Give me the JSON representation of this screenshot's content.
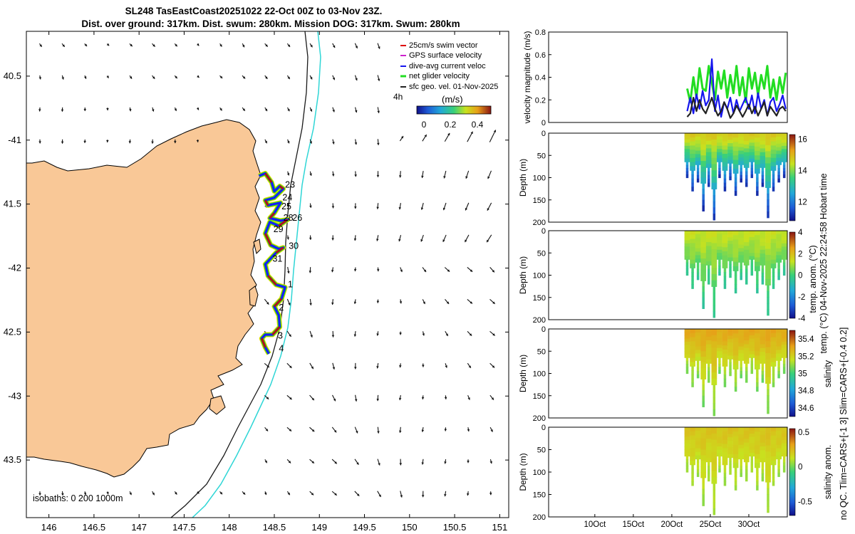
{
  "header": {
    "line1": "SL248 TasEastCoast20251022 22-Oct 00Z to 03-Nov 23Z.",
    "line2": "Dist. over ground: 317km. Dist. swum: 280km. Mission DOG: 317km. Swum: 280km"
  },
  "side_text": {
    "timestamp": "temp. (°C) 04-Nov-2025 22:24:58 Hobart time",
    "qc_note": "no QC. Tlim=CARS+[-1 3] Slim=CARS+[-0.4 0.2]"
  },
  "colors": {
    "land": "#f9c897",
    "track": "#1a1aff",
    "isobath_shallow": "#1a1a1a",
    "isobath_deep": "#2fd6d6",
    "vel_green": "#22dd22",
    "vel_blue": "#1515ee",
    "vel_dark": "#222222"
  },
  "chart_data": [
    {
      "type": "map",
      "name": "glider-track-map",
      "xlim": [
        145.75,
        151.1
      ],
      "ylim": [
        -43.95,
        -40.15
      ],
      "x_ticks": [
        146,
        146.5,
        147,
        147.5,
        148,
        148.5,
        149,
        149.5,
        150,
        150.5,
        151
      ],
      "x_tick_labels": [
        "146",
        "146.5",
        "147",
        "147.5",
        "148",
        "148.5",
        "149",
        "149.5",
        "150",
        "150.5",
        "151"
      ],
      "y_ticks": [
        -40.5,
        -41,
        -41.5,
        -42,
        -42.5,
        -43,
        -43.5
      ],
      "y_tick_labels": [
        "40.5",
        "-41",
        "41.5",
        "-42",
        "42.5",
        "-43",
        "43.5"
      ],
      "legend": {
        "placement": "top-right",
        "items": [
          {
            "label": "25cm/s swim vector",
            "color": "#dd0000"
          },
          {
            "label": "GPS surface velocity",
            "color": "#cc22cc"
          },
          {
            "label": "dive-avg current veloc",
            "color": "#1515ee"
          },
          {
            "label": "net glider velocity",
            "color": "#22dd22"
          },
          {
            "label": "sfc geo. vel. 01-Nov-2025",
            "color": "#222222"
          }
        ]
      },
      "colorbar": {
        "label": "(m/s)",
        "side_label": "4h",
        "ticks": [
          0,
          0.2,
          0.4
        ],
        "tick_labels": [
          "0",
          "0.2",
          "0.4"
        ],
        "range": [
          0,
          0.5
        ]
      },
      "isobaths_label": "isobaths: 0   200  1000m",
      "day_labels": [
        {
          "text": "23",
          "lon": 148.62,
          "lat": -41.37
        },
        {
          "text": "24",
          "lon": 148.59,
          "lat": -41.47
        },
        {
          "text": "25",
          "lon": 148.58,
          "lat": -41.54
        },
        {
          "text": "28",
          "lon": 148.6,
          "lat": -41.63
        },
        {
          "text": "26",
          "lon": 148.7,
          "lat": -41.63
        },
        {
          "text": "29",
          "lon": 148.49,
          "lat": -41.72
        },
        {
          "text": "30",
          "lon": 148.66,
          "lat": -41.85
        },
        {
          "text": "31",
          "lon": 148.48,
          "lat": -41.95
        },
        {
          "text": "1",
          "lon": 148.65,
          "lat": -42.15
        },
        {
          "text": "2",
          "lon": 148.55,
          "lat": -42.33
        },
        {
          "text": "3",
          "lon": 148.54,
          "lat": -42.55
        },
        {
          "text": "4",
          "lon": 148.55,
          "lat": -42.65
        }
      ],
      "track": [
        [
          148.33,
          -41.28
        ],
        [
          148.4,
          -41.26
        ],
        [
          148.47,
          -41.33
        ],
        [
          148.5,
          -41.4
        ],
        [
          148.56,
          -41.36
        ],
        [
          148.6,
          -41.38
        ],
        [
          148.5,
          -41.45
        ],
        [
          148.4,
          -41.47
        ],
        [
          148.43,
          -41.51
        ],
        [
          148.57,
          -41.49
        ],
        [
          148.5,
          -41.57
        ],
        [
          148.45,
          -41.61
        ],
        [
          148.57,
          -41.63
        ],
        [
          148.65,
          -41.62
        ],
        [
          148.55,
          -41.67
        ],
        [
          148.45,
          -41.64
        ],
        [
          148.4,
          -41.73
        ],
        [
          148.46,
          -41.82
        ],
        [
          148.55,
          -41.85
        ],
        [
          148.6,
          -41.84
        ],
        [
          148.52,
          -41.88
        ],
        [
          148.4,
          -41.97
        ],
        [
          148.43,
          -42.06
        ],
        [
          148.52,
          -42.13
        ],
        [
          148.62,
          -42.15
        ],
        [
          148.58,
          -42.24
        ],
        [
          148.5,
          -42.3
        ],
        [
          148.55,
          -42.37
        ],
        [
          148.56,
          -42.46
        ],
        [
          148.48,
          -42.52
        ],
        [
          148.4,
          -42.52
        ],
        [
          148.36,
          -42.55
        ],
        [
          148.4,
          -42.62
        ],
        [
          148.44,
          -42.67
        ]
      ],
      "note": "sfc geo. vel. arrows sampled every 0.25 deg; positions and directions follow the plotted field"
    },
    {
      "type": "line",
      "name": "velocity-magnitude",
      "ylabel": "velocity magnitude (m/s)",
      "ylim": [
        0,
        0.8
      ],
      "y_ticks": [
        0,
        0.2,
        0.4,
        0.6,
        0.8
      ],
      "y_tick_labels": [
        "0",
        "0.2",
        "0.4",
        "0.6",
        "0.8"
      ],
      "x_unit": "days since 01-Oct-2025",
      "xlim": [
        4,
        35
      ],
      "series": [
        {
          "name": "net glider velocity",
          "color": "#22dd22",
          "x": [
            22.0,
            22.4,
            22.8,
            23.2,
            23.6,
            24.0,
            24.4,
            24.8,
            25.2,
            25.6,
            26.0,
            26.4,
            26.8,
            27.2,
            27.6,
            28.0,
            28.4,
            28.8,
            29.2,
            29.6,
            30.0,
            30.4,
            30.8,
            31.2,
            31.6,
            32.0,
            32.4,
            32.8,
            33.2,
            33.6,
            34.0,
            34.4,
            34.8
          ],
          "y": [
            0.3,
            0.18,
            0.4,
            0.22,
            0.48,
            0.3,
            0.28,
            0.5,
            0.35,
            0.2,
            0.45,
            0.3,
            0.46,
            0.22,
            0.42,
            0.26,
            0.5,
            0.24,
            0.4,
            0.18,
            0.48,
            0.3,
            0.44,
            0.24,
            0.42,
            0.3,
            0.5,
            0.22,
            0.38,
            0.2,
            0.4,
            0.26,
            0.44
          ]
        },
        {
          "name": "dive-avg current veloc",
          "color": "#1515ee",
          "x": [
            22.0,
            22.4,
            22.8,
            23.2,
            23.6,
            24.0,
            24.4,
            24.8,
            25.2,
            25.6,
            26.0,
            26.4,
            26.8,
            27.2,
            27.6,
            28.0,
            28.4,
            28.8,
            29.2,
            29.6,
            30.0,
            30.4,
            30.8,
            31.2,
            31.6,
            32.0,
            32.4,
            32.8,
            33.2,
            33.6,
            34.0,
            34.4,
            34.8
          ],
          "y": [
            0.1,
            0.22,
            0.08,
            0.25,
            0.12,
            0.28,
            0.15,
            0.2,
            0.56,
            0.1,
            0.24,
            0.05,
            0.18,
            0.12,
            0.22,
            0.08,
            0.2,
            0.1,
            0.16,
            0.22,
            0.12,
            0.24,
            0.08,
            0.26,
            0.12,
            0.2,
            0.06,
            0.18,
            0.22,
            0.1,
            0.16,
            0.24,
            0.12
          ]
        },
        {
          "name": "sfc geo. vel.",
          "color": "#222222",
          "x": [
            22.0,
            22.4,
            22.8,
            23.2,
            23.6,
            24.0,
            24.4,
            24.8,
            25.2,
            25.6,
            26.0,
            26.4,
            26.8,
            27.2,
            27.6,
            28.0,
            28.4,
            28.8,
            29.2,
            29.6,
            30.0,
            30.4,
            30.8,
            31.2,
            31.6,
            32.0,
            32.4,
            32.8,
            33.2,
            33.6,
            34.0,
            34.4,
            34.8
          ],
          "y": [
            0.05,
            0.08,
            0.22,
            0.1,
            0.2,
            0.12,
            0.08,
            0.15,
            0.22,
            0.12,
            0.06,
            0.1,
            0.18,
            0.12,
            0.04,
            0.08,
            0.15,
            0.1,
            0.05,
            0.1,
            0.16,
            0.08,
            0.14,
            0.06,
            0.12,
            0.18,
            0.06,
            0.14,
            0.1,
            0.06,
            0.12,
            0.14,
            0.1
          ]
        }
      ]
    },
    {
      "type": "heatmap",
      "name": "temperature-section",
      "ylabel": "Depth (m)",
      "y_ticks": [
        0,
        50,
        100,
        150,
        200
      ],
      "y_tick_labels": [
        "0",
        "50",
        "100",
        "150",
        "200"
      ],
      "ylim": [
        0,
        200
      ],
      "colorbar": {
        "ticks": [
          12,
          14,
          16
        ],
        "tick_labels": [
          "12",
          "14",
          "16"
        ],
        "range": [
          10.8,
          16.3
        ],
        "label": "temp. (°C)"
      },
      "x_unit": "days since 01-Oct-2025",
      "profile_days": [
        22.0,
        22.7,
        23.4,
        24.1,
        24.8,
        25.5,
        26.2,
        26.9,
        27.6,
        28.3,
        29.0,
        29.7,
        30.4,
        31.1,
        31.8,
        32.5,
        33.2,
        33.9,
        34.6
      ],
      "profile_depths": [
        100,
        130,
        110,
        175,
        120,
        195,
        100,
        130,
        105,
        140,
        110,
        120,
        100,
        140,
        120,
        190,
        130,
        110,
        100
      ],
      "surface_value": 14.8,
      "deep_value": 11.0
    },
    {
      "type": "heatmap",
      "name": "temperature-anomaly-section",
      "ylabel": "Depth (m)",
      "y_ticks": [
        0,
        50,
        100,
        150,
        200
      ],
      "y_tick_labels": [
        "0",
        "50",
        "100",
        "150",
        "200"
      ],
      "ylim": [
        0,
        200
      ],
      "colorbar": {
        "ticks": [
          -4,
          -2,
          0,
          2,
          4
        ],
        "tick_labels": [
          "-4",
          "-2",
          "0",
          "2",
          "4"
        ],
        "range": [
          -4,
          4
        ],
        "label": "temp. anom. (°C)"
      },
      "profile_days": [
        22.0,
        22.7,
        23.4,
        24.1,
        24.8,
        25.5,
        26.2,
        26.9,
        27.6,
        28.3,
        29.0,
        29.7,
        30.4,
        31.1,
        31.8,
        32.5,
        33.2,
        33.9,
        34.6
      ],
      "profile_depths": [
        100,
        130,
        110,
        175,
        120,
        195,
        100,
        130,
        105,
        140,
        110,
        120,
        100,
        140,
        120,
        190,
        130,
        110,
        100
      ],
      "surface_value": 1.3,
      "deep_value": -0.5
    },
    {
      "type": "heatmap",
      "name": "salinity-section",
      "ylabel": "Depth (m)",
      "y_ticks": [
        0,
        50,
        100,
        150,
        200
      ],
      "y_tick_labels": [
        "0",
        "50",
        "100",
        "150",
        "200"
      ],
      "ylim": [
        0,
        200
      ],
      "colorbar": {
        "ticks": [
          34.6,
          34.8,
          35,
          35.2,
          35.4
        ],
        "tick_labels": [
          "34.6",
          "34.8",
          "35",
          "35.2",
          "35.4"
        ],
        "range": [
          34.5,
          35.5
        ],
        "label": "salinity"
      },
      "profile_days": [
        22.0,
        22.7,
        23.4,
        24.1,
        24.8,
        25.5,
        26.2,
        26.9,
        27.6,
        28.3,
        29.0,
        29.7,
        30.4,
        31.1,
        31.8,
        32.5,
        33.2,
        33.9,
        34.6
      ],
      "profile_depths": [
        100,
        130,
        110,
        175,
        120,
        195,
        100,
        130,
        105,
        140,
        110,
        120,
        100,
        140,
        120,
        190,
        130,
        110,
        100
      ],
      "surface_value": 35.3,
      "deep_value": 35.05
    },
    {
      "type": "heatmap",
      "name": "salinity-anomaly-section",
      "ylabel": "Depth (m)",
      "y_ticks": [
        0,
        50,
        100,
        150,
        200
      ],
      "y_tick_labels": [
        "0",
        "50",
        "100",
        "150",
        "200"
      ],
      "ylim": [
        0,
        200
      ],
      "x_ticks": [
        10,
        15,
        20,
        25,
        30
      ],
      "x_tick_labels": [
        "10Oct",
        "15Oct",
        "20Oct",
        "25Oct",
        "30Oct"
      ],
      "colorbar": {
        "ticks": [
          -0.5,
          0,
          0.5
        ],
        "tick_labels": [
          "-0.5",
          "0",
          "0.5"
        ],
        "range": [
          -0.7,
          0.55
        ],
        "label": "salinity anom."
      },
      "profile_days": [
        22.0,
        22.7,
        23.4,
        24.1,
        24.8,
        25.5,
        26.2,
        26.9,
        27.6,
        28.3,
        29.0,
        29.7,
        30.4,
        31.1,
        31.8,
        32.5,
        33.2,
        33.9,
        34.6
      ],
      "profile_depths": [
        100,
        130,
        110,
        175,
        120,
        195,
        100,
        130,
        105,
        140,
        110,
        120,
        100,
        140,
        120,
        190,
        130,
        110,
        100
      ],
      "surface_value": 0.22,
      "deep_value": 0.05
    }
  ]
}
